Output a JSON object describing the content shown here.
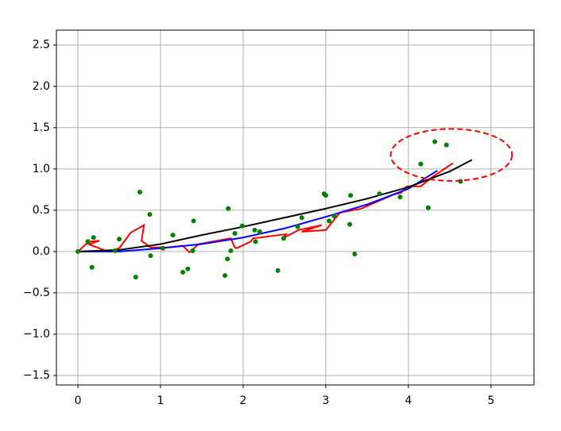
{
  "chart_data": {
    "type": "scatter",
    "xlim": [
      -0.26,
      5.52
    ],
    "ylim": [
      -1.615,
      2.68
    ],
    "xticks": [
      0,
      1,
      2,
      3,
      4,
      5
    ],
    "yticks": [
      {
        "value": -1.5,
        "label": "−1.5"
      },
      {
        "value": -1.0,
        "label": "−1.0"
      },
      {
        "value": -0.5,
        "label": "−0.5"
      },
      {
        "value": 0,
        "label": "0.0"
      },
      0.5,
      {
        "value": 1.0,
        "label": "1.0"
      },
      1.5,
      {
        "value": 2.0,
        "label": "2.0"
      },
      2.5
    ],
    "grid": true,
    "points": {
      "color": "#008000",
      "x": [
        0,
        0.12,
        0.19,
        0.17,
        0.45,
        0.5,
        0.7,
        0.75,
        0.87,
        0.88,
        1.03,
        1.15,
        1.27,
        1.33,
        1.39,
        1.4,
        1.78,
        1.81,
        1.82,
        1.85,
        1.9,
        1.99,
        2.14,
        2.15,
        2.2,
        2.42,
        2.49,
        2.66,
        2.71,
        2.98,
        3.0,
        3.04,
        3.1,
        3.29,
        3.3,
        3.35,
        3.65,
        3.9,
        4.15,
        4.24,
        4.32,
        4.46,
        4.63
      ],
      "values": [
        0,
        0.12,
        0.17,
        -0.19,
        0.01,
        0.15,
        -0.31,
        0.72,
        0.45,
        -0.05,
        0.04,
        0.2,
        -0.25,
        -0.21,
        0.01,
        0.37,
        -0.29,
        -0.09,
        0.52,
        0.01,
        0.22,
        0.31,
        0.26,
        0.12,
        0.24,
        -0.23,
        0.16,
        0.3,
        0.41,
        0.7,
        0.68,
        0.37,
        0.43,
        0.33,
        0.68,
        -0.03,
        0.7,
        0.66,
        1.06,
        0.53,
        1.33,
        1.29,
        0.85
      ]
    },
    "series": [
      {
        "color": "#ff0000",
        "x": [
          0,
          0.13,
          0.26,
          0.13,
          0.36,
          0.5,
          0.64,
          0.8,
          0.77,
          0.88,
          1.08,
          1.27,
          1.35,
          1.46,
          1.85,
          1.9,
          1.92,
          2.09,
          2.12,
          2.52,
          2.48,
          2.67,
          2.95,
          2.71,
          3.0,
          3.17,
          3.43,
          3.82,
          3.91,
          3.98,
          4.15,
          4.3,
          4.54
        ],
        "values": [
          0,
          0.12,
          0.13,
          0.09,
          0,
          0.04,
          0.23,
          0.32,
          0.13,
          0.05,
          0.05,
          0.07,
          -0.01,
          0.09,
          0.16,
          0.05,
          0.04,
          0.12,
          0.16,
          0.21,
          0.16,
          0.26,
          0.32,
          0.24,
          0.26,
          0.47,
          0.52,
          0.69,
          0.71,
          0.79,
          0.79,
          0.91,
          1.07
        ]
      },
      {
        "color": "#0000ff",
        "x": [
          0,
          0.5,
          1,
          1.5,
          2,
          2.5,
          3,
          3.5,
          4,
          4.35
        ],
        "values": [
          0,
          0.0,
          0.04,
          0.09,
          0.17,
          0.28,
          0.42,
          0.57,
          0.76,
          0.98
        ]
      },
      {
        "color": "#000000",
        "x": [
          0,
          0.5,
          1,
          1.5,
          2,
          2.5,
          3,
          3.5,
          4,
          4.5,
          4.77
        ],
        "values": [
          0,
          0.02,
          0.09,
          0.2,
          0.3,
          0.41,
          0.52,
          0.64,
          0.78,
          0.97,
          1.11
        ]
      }
    ],
    "ellipse": {
      "center": [
        4.52,
        1.17
      ],
      "width": 1.47,
      "height": 0.63,
      "color": "#ff0000",
      "linestyle": "dashed"
    }
  }
}
